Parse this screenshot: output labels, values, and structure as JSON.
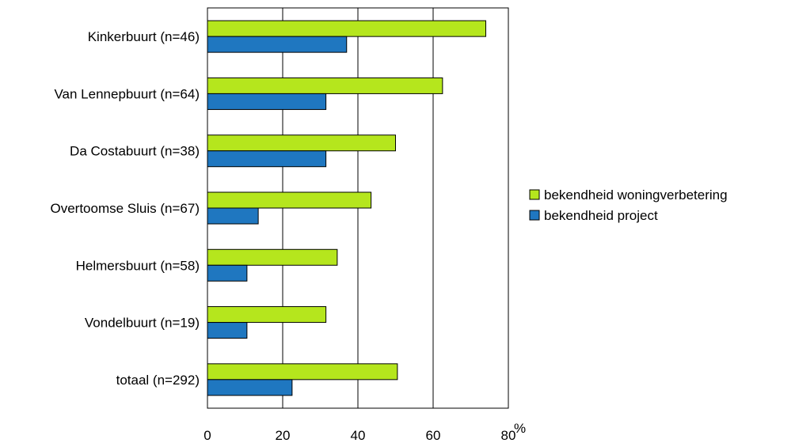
{
  "chart_data": {
    "type": "bar",
    "orientation": "horizontal",
    "categories": [
      "Kinkerbuurt (n=46)",
      "Van Lennepbuurt (n=64)",
      "Da Costabuurt (n=38)",
      "Overtoomse Sluis (n=67)",
      "Helmersbuurt (n=58)",
      "Vondelbuurt (n=19)",
      "totaal (n=292)"
    ],
    "series": [
      {
        "name": "bekendheid woningverbetering",
        "color": "#b5e61d",
        "values": [
          74,
          62.5,
          50,
          43.5,
          34.5,
          31.5,
          50.5
        ]
      },
      {
        "name": "bekendheid project",
        "color": "#1f77c0",
        "values": [
          37,
          31.5,
          31.5,
          13.5,
          10.5,
          10.5,
          22.5
        ]
      }
    ],
    "xlim": [
      0,
      80
    ],
    "xticks": [
      "0",
      "20",
      "40",
      "60",
      "80"
    ],
    "unit_label": "%",
    "grid": true,
    "legend_position": "right"
  }
}
